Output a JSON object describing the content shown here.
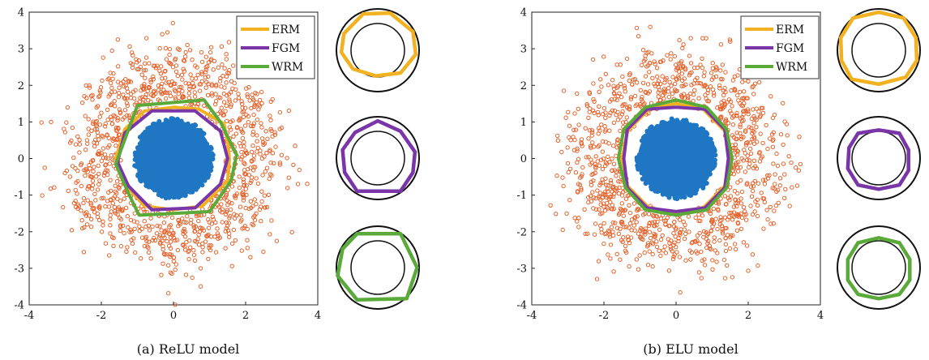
{
  "chart_data": [
    {
      "type": "scatter",
      "caption": "(a) ReLU model",
      "xlim": [
        -4,
        4
      ],
      "ylim": [
        -4,
        4
      ],
      "xticks": [
        "-4",
        "-2",
        "0",
        "2",
        "4"
      ],
      "yticks": [
        "4",
        "3",
        "2",
        "1",
        "0",
        "-1",
        "-2",
        "-3",
        "-4"
      ],
      "grid": false,
      "legend_position": "top-right",
      "inner_class": {
        "color": "#1f77c4",
        "radius": 1.1,
        "count": 700
      },
      "outer_class": {
        "color": "#e5622a",
        "r_mean": 2.25,
        "r_sd": 0.55,
        "r_min": 1.45,
        "count": 1100
      },
      "series": [
        {
          "name": "ERM",
          "color": "#f2b120",
          "polygon": [
            [
              1.55,
              0.0
            ],
            [
              1.5,
              0.45
            ],
            [
              1.4,
              0.95
            ],
            [
              0.7,
              1.35
            ],
            [
              0.0,
              1.4
            ],
            [
              -0.8,
              1.3
            ],
            [
              -1.35,
              0.8
            ],
            [
              -1.6,
              0.0
            ],
            [
              -1.35,
              -0.7
            ],
            [
              -0.8,
              -1.3
            ],
            [
              0.0,
              -1.4
            ],
            [
              0.8,
              -1.3
            ],
            [
              1.5,
              -0.6
            ]
          ]
        },
        {
          "name": "FGM",
          "color": "#7a35a8",
          "polygon": [
            [
              1.5,
              0.0
            ],
            [
              1.3,
              0.75
            ],
            [
              0.6,
              1.3
            ],
            [
              -0.6,
              1.3
            ],
            [
              -1.35,
              0.7
            ],
            [
              -1.55,
              -0.1
            ],
            [
              -1.25,
              -0.75
            ],
            [
              -0.6,
              -1.4
            ],
            [
              0.6,
              -1.35
            ],
            [
              1.3,
              -0.7
            ]
          ]
        },
        {
          "name": "WRM",
          "color": "#5aaa3a",
          "polygon": [
            [
              1.75,
              0.1
            ],
            [
              1.3,
              1.0
            ],
            [
              0.85,
              1.6
            ],
            [
              -1.0,
              1.45
            ],
            [
              -1.6,
              -0.15
            ],
            [
              -1.25,
              -0.95
            ],
            [
              -0.95,
              -1.55
            ],
            [
              1.0,
              -1.45
            ],
            [
              1.6,
              -0.6
            ]
          ]
        }
      ],
      "insets": [
        {
          "series": "ERM",
          "polygon": [
            [
              0.85,
              0.45
            ],
            [
              0.3,
              0.9
            ],
            [
              -0.35,
              0.88
            ],
            [
              -0.82,
              0.4
            ],
            [
              -0.88,
              -0.05
            ],
            [
              -0.6,
              -0.45
            ],
            [
              -0.05,
              -0.62
            ],
            [
              0.55,
              -0.55
            ],
            [
              0.92,
              -0.1
            ]
          ]
        },
        {
          "series": "FGM",
          "polygon": [
            [
              0.0,
              0.9
            ],
            [
              0.55,
              0.65
            ],
            [
              0.9,
              0.15
            ],
            [
              0.85,
              -0.35
            ],
            [
              0.55,
              -0.8
            ],
            [
              -0.5,
              -0.8
            ],
            [
              -0.8,
              -0.35
            ],
            [
              -0.85,
              0.2
            ],
            [
              -0.55,
              0.62
            ]
          ]
        },
        {
          "series": "WRM",
          "polygon": [
            [
              -0.5,
              0.82
            ],
            [
              0.55,
              0.82
            ],
            [
              0.95,
              0.0
            ],
            [
              0.7,
              -0.75
            ],
            [
              -0.5,
              -0.78
            ],
            [
              -0.97,
              -0.2
            ],
            [
              -0.85,
              0.45
            ]
          ]
        }
      ]
    },
    {
      "type": "scatter",
      "caption": "(b) ELU model",
      "xlim": [
        -4,
        4
      ],
      "ylim": [
        -4,
        4
      ],
      "xticks": [
        "-4",
        "-2",
        "0",
        "2",
        "4"
      ],
      "yticks": [
        "4",
        "3",
        "2",
        "1",
        "0",
        "-1",
        "-2",
        "-3",
        "-4"
      ],
      "grid": false,
      "legend_position": "top-right",
      "inner_class": {
        "color": "#1f77c4",
        "radius": 1.1,
        "count": 700
      },
      "outer_class": {
        "color": "#e5622a",
        "r_mean": 2.25,
        "r_sd": 0.55,
        "r_min": 1.45,
        "count": 1100
      },
      "series": [
        {
          "name": "ERM",
          "color": "#f2b120",
          "polygon": [
            [
              1.5,
              0.0
            ],
            [
              1.35,
              0.75
            ],
            [
              0.75,
              1.35
            ],
            [
              0.0,
              1.5
            ],
            [
              -0.75,
              1.35
            ],
            [
              -1.35,
              0.75
            ],
            [
              -1.5,
              0.0
            ],
            [
              -1.35,
              -0.75
            ],
            [
              -0.75,
              -1.35
            ],
            [
              0.0,
              -1.5
            ],
            [
              0.75,
              -1.35
            ],
            [
              1.35,
              -0.75
            ]
          ]
        },
        {
          "name": "FGM",
          "color": "#7a35a8",
          "polygon": [
            [
              1.45,
              0.0
            ],
            [
              1.35,
              0.8
            ],
            [
              0.8,
              1.35
            ],
            [
              0.0,
              1.4
            ],
            [
              -0.8,
              1.35
            ],
            [
              -1.35,
              0.8
            ],
            [
              -1.45,
              0.0
            ],
            [
              -1.35,
              -0.8
            ],
            [
              -0.8,
              -1.35
            ],
            [
              0.0,
              -1.45
            ],
            [
              0.8,
              -1.35
            ],
            [
              1.35,
              -0.8
            ]
          ]
        },
        {
          "name": "WRM",
          "color": "#5aaa3a",
          "polygon": [
            [
              1.55,
              0.0
            ],
            [
              1.4,
              0.8
            ],
            [
              0.85,
              1.4
            ],
            [
              0.0,
              1.6
            ],
            [
              -0.85,
              1.4
            ],
            [
              -1.45,
              0.8
            ],
            [
              -1.6,
              0.0
            ],
            [
              -1.4,
              -0.8
            ],
            [
              -0.85,
              -1.4
            ],
            [
              0.0,
              -1.55
            ],
            [
              0.85,
              -1.4
            ],
            [
              1.4,
              -0.8
            ]
          ]
        }
      ],
      "insets": [
        {
          "series": "ERM",
          "polygon": [
            [
              0.0,
              0.92
            ],
            [
              0.6,
              0.78
            ],
            [
              0.9,
              0.3
            ],
            [
              0.92,
              -0.25
            ],
            [
              0.65,
              -0.65
            ],
            [
              0.0,
              -0.82
            ],
            [
              -0.65,
              -0.7
            ],
            [
              -0.9,
              -0.25
            ],
            [
              -0.92,
              0.3
            ],
            [
              -0.62,
              0.78
            ]
          ]
        },
        {
          "series": "FGM",
          "polygon": [
            [
              0.0,
              0.68
            ],
            [
              0.5,
              0.6
            ],
            [
              0.72,
              0.2
            ],
            [
              0.72,
              -0.3
            ],
            [
              0.5,
              -0.65
            ],
            [
              0.0,
              -0.75
            ],
            [
              -0.5,
              -0.65
            ],
            [
              -0.75,
              -0.25
            ],
            [
              -0.72,
              0.25
            ],
            [
              -0.5,
              0.6
            ]
          ]
        },
        {
          "series": "WRM",
          "polygon": [
            [
              0.0,
              0.72
            ],
            [
              0.5,
              0.6
            ],
            [
              0.75,
              0.2
            ],
            [
              0.75,
              -0.3
            ],
            [
              0.5,
              -0.65
            ],
            [
              0.0,
              -0.75
            ],
            [
              -0.5,
              -0.65
            ],
            [
              -0.75,
              -0.3
            ],
            [
              -0.75,
              0.2
            ],
            [
              -0.5,
              0.6
            ]
          ]
        }
      ]
    }
  ]
}
